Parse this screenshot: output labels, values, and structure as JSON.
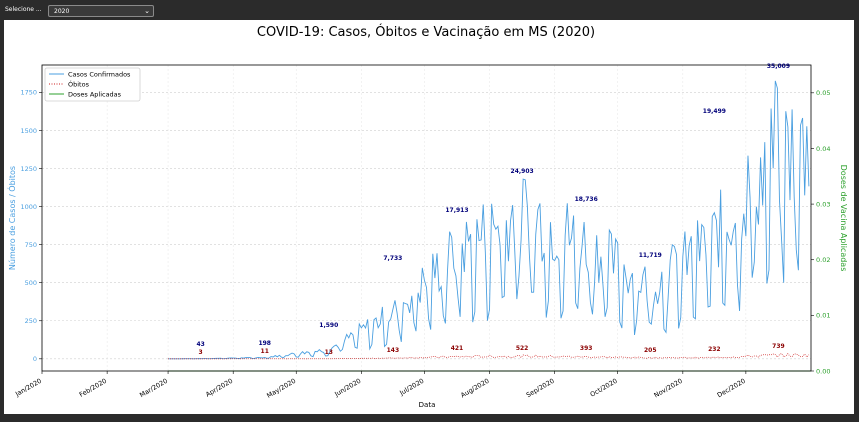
{
  "selector": {
    "label": "Selecione ...",
    "value": "2020"
  },
  "colors": {
    "cases": "#4a9fe0",
    "deaths": "#cc1f1f",
    "vaccines": "#2ca02c",
    "label_cases": "#00007a",
    "label_deaths": "#8b0000"
  },
  "chart_data": {
    "type": "line",
    "title": "COVID-19: Casos, Óbitos e Vacinação em MS (2020)",
    "xlabel": "Data",
    "ylabel": "Número de Casos / Óbitos",
    "y2label": "Doses de Vacina Aplicadas",
    "ylim": [
      -80,
      1930
    ],
    "y2lim": [
      0,
      0.055
    ],
    "yticks": [
      "0",
      "250",
      "500",
      "750",
      "1000",
      "1250",
      "1500",
      "1750"
    ],
    "y2ticks": [
      "0.00",
      "0.01",
      "0.02",
      "0.03",
      "0.04",
      "0.05"
    ],
    "xticks": [
      "Jan/2020",
      "Feb/2020",
      "Mar/2020",
      "Apr/2020",
      "May/2020",
      "Jun/2020",
      "Jul/2020",
      "Aug/2020",
      "Sep/2020",
      "Oct/2020",
      "Nov/2020",
      "Dec/2020"
    ],
    "grid": true,
    "legend": "top-left",
    "series": [
      {
        "name": "Casos Confirmados",
        "style": "solid"
      },
      {
        "name": "Óbitos",
        "style": "dotted"
      },
      {
        "name": "Doses Aplicadas",
        "style": "solid"
      }
    ],
    "monthly_cases": [
      {
        "month": 3,
        "value": 1,
        "label": "43"
      },
      {
        "month": 4,
        "value": 7,
        "label": "198"
      },
      {
        "month": 5,
        "value": 50,
        "label": "1,590"
      },
      {
        "month": 6,
        "value": 250,
        "label": "7,733"
      },
      {
        "month": 7,
        "value": 580,
        "label": "17,913"
      },
      {
        "month": 8,
        "value": 800,
        "label": "24,903"
      },
      {
        "month": 9,
        "value": 620,
        "label": "18,736"
      },
      {
        "month": 10,
        "value": 390,
        "label": "11,719"
      },
      {
        "month": 11,
        "value": 650,
        "label": "19,499"
      },
      {
        "month": 12,
        "value": 1130,
        "label": "35,009"
      }
    ],
    "monthly_deaths": [
      {
        "month": 3,
        "value": 0.1,
        "label": "3"
      },
      {
        "month": 4,
        "value": 0.4,
        "label": "11"
      },
      {
        "month": 5,
        "value": 0.4,
        "label": "13"
      },
      {
        "month": 6,
        "value": 5,
        "label": "143"
      },
      {
        "month": 7,
        "value": 14,
        "label": "421"
      },
      {
        "month": 8,
        "value": 17,
        "label": "522"
      },
      {
        "month": 9,
        "value": 13,
        "label": "393"
      },
      {
        "month": 10,
        "value": 7,
        "label": "205"
      },
      {
        "month": 11,
        "value": 8,
        "label": "232"
      },
      {
        "month": 12,
        "value": 24,
        "label": "739"
      }
    ],
    "vaccines": 0
  }
}
